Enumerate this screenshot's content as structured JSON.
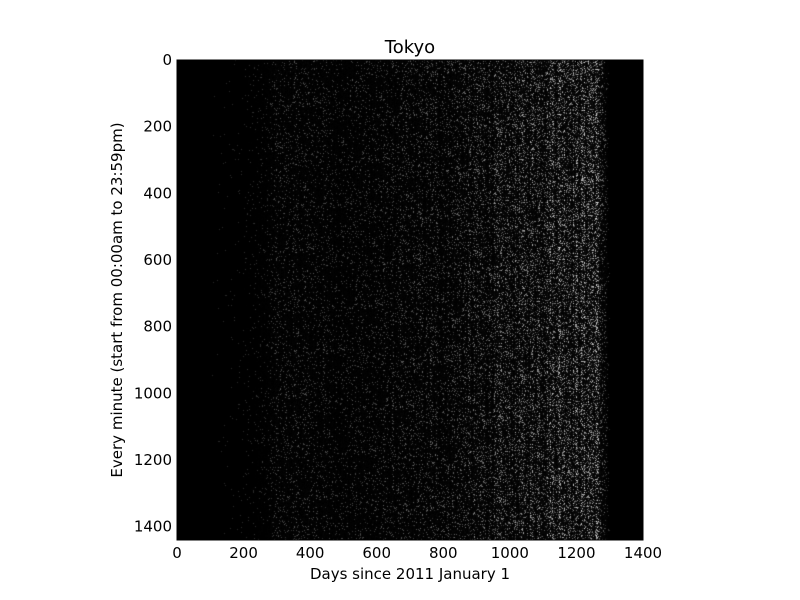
{
  "chart_data": {
    "type": "heatmap",
    "title": "Tokyo",
    "xlabel": "Days since 2011 January 1",
    "ylabel": "Every minute (start from 00:00am to 23:59pm)",
    "xlim": [
      0,
      1400
    ],
    "ylim": [
      1440,
      0
    ],
    "y_inverted": true,
    "x_ticks": [
      0,
      200,
      400,
      600,
      800,
      1000,
      1200,
      1400
    ],
    "y_ticks": [
      0,
      200,
      400,
      600,
      800,
      1000,
      1200,
      1400
    ],
    "colormap": "gray",
    "grid": false,
    "legend": "none",
    "data_extent": {
      "x": [
        0,
        1400
      ],
      "y": [
        0,
        1440
      ]
    },
    "intensity_profile": {
      "x_days": [
        0,
        100,
        200,
        270,
        300,
        400,
        500,
        600,
        700,
        800,
        900,
        1000,
        1100,
        1150,
        1200,
        1260,
        1290,
        1300,
        1400
      ],
      "mean_brightness": [
        0.0,
        0.0,
        0.01,
        0.02,
        0.05,
        0.05,
        0.04,
        0.05,
        0.06,
        0.07,
        0.09,
        0.11,
        0.14,
        0.17,
        0.15,
        0.18,
        0.05,
        0.0,
        0.0
      ]
    },
    "colors": {
      "background": "#000000",
      "foreground": "#ffffff"
    }
  }
}
